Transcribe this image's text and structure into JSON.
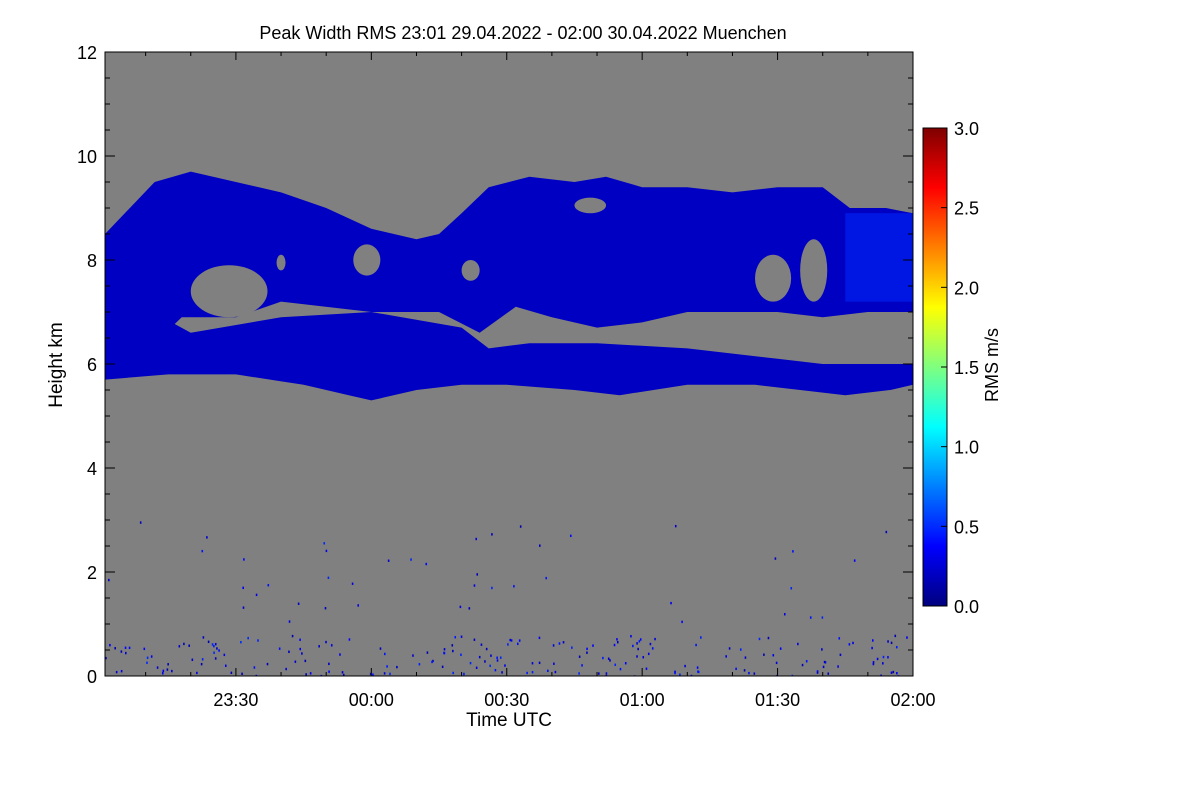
{
  "chart_data": {
    "type": "heatmap",
    "title": "Peak Width RMS   23:01 29.04.2022 - 02:00 30.04.2022 Muenchen",
    "xlabel": "Time UTC",
    "ylabel": "Height km",
    "colorbar_label": "RMS m/s",
    "x_range_minutes_after_midnight": [
      -59,
      120
    ],
    "x_ticks": [
      {
        "label": "23:30",
        "value": -30
      },
      {
        "label": "00:00",
        "value": 0
      },
      {
        "label": "00:30",
        "value": 30
      },
      {
        "label": "01:00",
        "value": 60
      },
      {
        "label": "01:30",
        "value": 90
      },
      {
        "label": "02:00",
        "value": 120
      }
    ],
    "y_range": [
      0,
      12
    ],
    "y_ticks": [
      {
        "label": "0",
        "value": 0
      },
      {
        "label": "2",
        "value": 2
      },
      {
        "label": "4",
        "value": 4
      },
      {
        "label": "6",
        "value": 6
      },
      {
        "label": "8",
        "value": 8
      },
      {
        "label": "10",
        "value": 10
      },
      {
        "label": "12",
        "value": 12
      }
    ],
    "colorbar_range": [
      0,
      3
    ],
    "colorbar_ticks": [
      {
        "label": "0.0",
        "value": 0
      },
      {
        "label": "0.5",
        "value": 0.5
      },
      {
        "label": "1.0",
        "value": 1.0
      },
      {
        "label": "1.5",
        "value": 1.5
      },
      {
        "label": "2.0",
        "value": 2.0
      },
      {
        "label": "2.5",
        "value": 2.5
      },
      {
        "label": "3.0",
        "value": 3.0
      }
    ],
    "colormap": [
      "#00007f",
      "#0000ff",
      "#007fff",
      "#00ffff",
      "#7fff7f",
      "#ffff00",
      "#ff7f00",
      "#ff0000",
      "#7f0000"
    ],
    "background_color": "#808080",
    "cloud_layers": [
      {
        "name": "upper",
        "top": [
          [
            -59,
            8.5
          ],
          [
            -48,
            9.5
          ],
          [
            -40,
            9.7
          ],
          [
            -30,
            9.5
          ],
          [
            -20,
            9.3
          ],
          [
            -10,
            9.0
          ],
          [
            0,
            8.6
          ],
          [
            10,
            8.4
          ],
          [
            15,
            8.5
          ],
          [
            20,
            8.9
          ],
          [
            26,
            9.4
          ],
          [
            35,
            9.6
          ],
          [
            45,
            9.5
          ],
          [
            52,
            9.6
          ],
          [
            60,
            9.4
          ],
          [
            70,
            9.4
          ],
          [
            80,
            9.3
          ],
          [
            90,
            9.4
          ],
          [
            100,
            9.4
          ],
          [
            106,
            9.0
          ],
          [
            114,
            9.0
          ],
          [
            120,
            8.9
          ]
        ],
        "bottom": [
          [
            -59,
            6.0
          ],
          [
            -48,
            6.4
          ],
          [
            -42,
            6.9
          ],
          [
            -30,
            6.9
          ],
          [
            -20,
            7.2
          ],
          [
            0,
            7.0
          ],
          [
            15,
            7.0
          ],
          [
            24,
            6.6
          ],
          [
            32,
            7.1
          ],
          [
            40,
            6.9
          ],
          [
            50,
            6.7
          ],
          [
            60,
            6.8
          ],
          [
            70,
            7.0
          ],
          [
            80,
            7.0
          ],
          [
            90,
            7.0
          ],
          [
            100,
            6.9
          ],
          [
            110,
            7.0
          ],
          [
            120,
            7.0
          ]
        ],
        "rms": 0.2
      },
      {
        "name": "lower",
        "top": [
          [
            -59,
            7.5
          ],
          [
            -40,
            6.6
          ],
          [
            -20,
            6.9
          ],
          [
            0,
            7.0
          ],
          [
            20,
            6.7
          ],
          [
            26,
            6.3
          ],
          [
            35,
            6.4
          ],
          [
            50,
            6.4
          ],
          [
            70,
            6.3
          ],
          [
            90,
            6.1
          ],
          [
            100,
            6.0
          ],
          [
            110,
            6.0
          ],
          [
            120,
            6.0
          ]
        ],
        "bottom": [
          [
            -59,
            5.7
          ],
          [
            -45,
            5.8
          ],
          [
            -30,
            5.8
          ],
          [
            -15,
            5.6
          ],
          [
            -5,
            5.4
          ],
          [
            0,
            5.3
          ],
          [
            10,
            5.5
          ],
          [
            20,
            5.6
          ],
          [
            30,
            5.6
          ],
          [
            45,
            5.5
          ],
          [
            55,
            5.4
          ],
          [
            70,
            5.6
          ],
          [
            85,
            5.6
          ],
          [
            95,
            5.5
          ],
          [
            105,
            5.4
          ],
          [
            115,
            5.5
          ],
          [
            120,
            5.6
          ]
        ],
        "rms": 0.2
      }
    ],
    "cloud_gaps": [
      {
        "x": [
          -40,
          -23
        ],
        "y": [
          6.9,
          7.9
        ],
        "name": "gap-a"
      },
      {
        "x": [
          -4,
          2
        ],
        "y": [
          7.7,
          8.3
        ],
        "name": "gap-b"
      },
      {
        "x": [
          -21,
          -19
        ],
        "y": [
          7.8,
          8.1
        ],
        "name": "gap-c"
      },
      {
        "x": [
          20,
          24
        ],
        "y": [
          7.6,
          8.0
        ],
        "name": "gap-d"
      },
      {
        "x": [
          45,
          52
        ],
        "y": [
          8.9,
          9.2
        ],
        "name": "gap-e"
      },
      {
        "x": [
          85,
          93
        ],
        "y": [
          7.2,
          8.1
        ],
        "name": "gap-f"
      },
      {
        "x": [
          95,
          101
        ],
        "y": [
          7.2,
          8.4
        ],
        "name": "gap-g"
      }
    ],
    "enhanced_region": {
      "x": [
        105,
        120
      ],
      "y": [
        7.2,
        8.9
      ],
      "rms": 0.5
    }
  }
}
